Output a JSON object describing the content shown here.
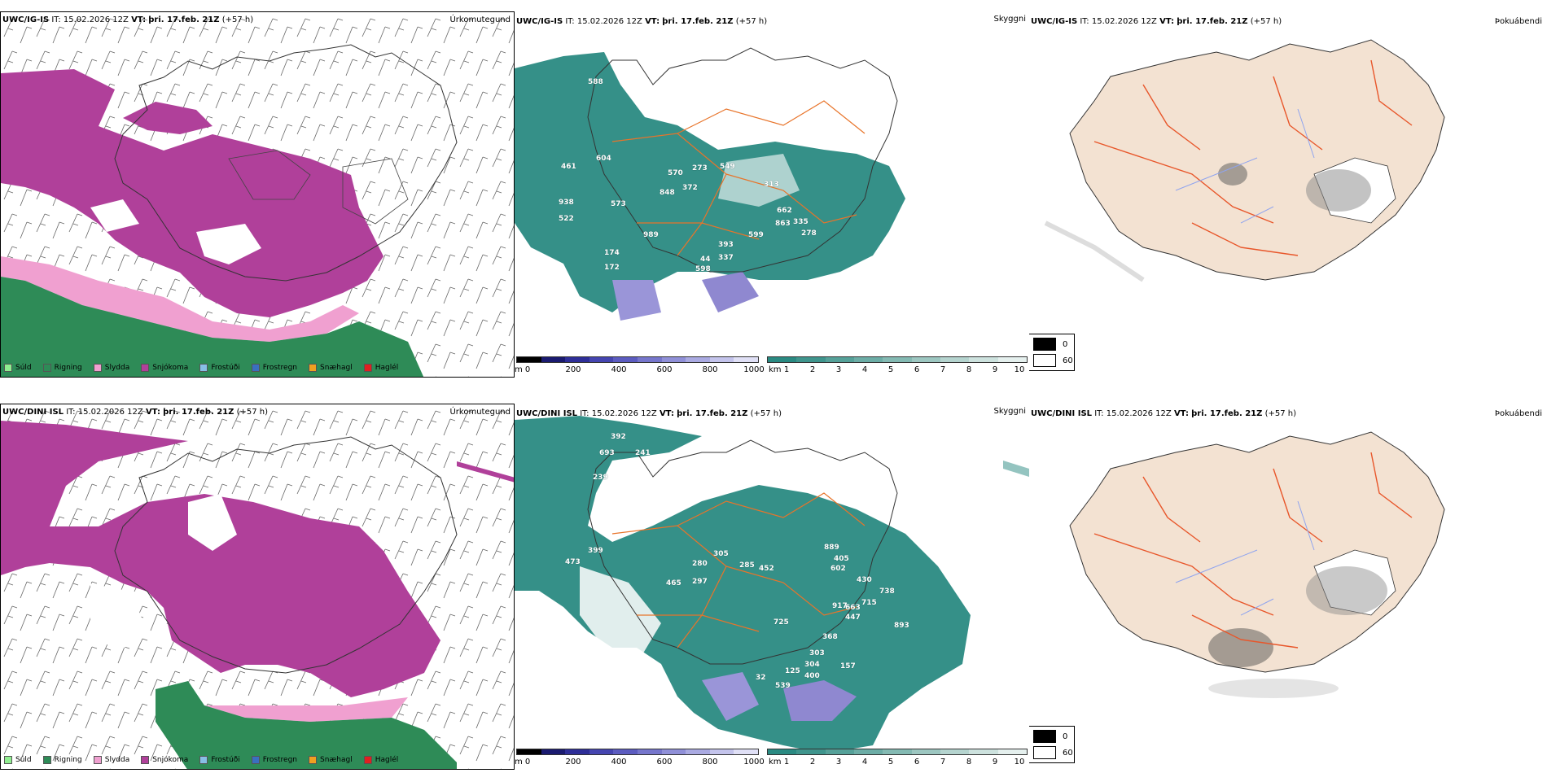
{
  "rows": [
    {
      "model": "UWC/IG-IS",
      "it": "IT: 15.02.2026 12Z",
      "vt_label": "VT:",
      "vt": "þri. 17.feb. 21Z",
      "lead": "(+57 h)",
      "cloud_numbers": [
        "588",
        "461",
        "604",
        "573",
        "273",
        "549",
        "570",
        "848",
        "372",
        "313",
        "938",
        "522",
        "662",
        "863",
        "335",
        "278",
        "989",
        "44",
        "337",
        "599",
        "598",
        "174",
        "172",
        "393"
      ]
    },
    {
      "model": "UWC/DINI ISL",
      "it": "IT: 15.02.2026 12Z",
      "vt_label": "VT:",
      "vt": "þri. 17.feb. 21Z",
      "lead": "(+57 h)",
      "cloud_numbers": [
        "392",
        "693",
        "241",
        "239",
        "399",
        "473",
        "305",
        "280",
        "285",
        "452",
        "889",
        "602",
        "465",
        "297",
        "430",
        "738",
        "715",
        "663",
        "447",
        "725",
        "917",
        "368",
        "893",
        "303",
        "304",
        "400",
        "32",
        "125",
        "539",
        "157",
        "405"
      ]
    }
  ],
  "titles": {
    "precip_type": "Úrkomutegund",
    "cloud": "Skyggni",
    "fog": "Þokuábendi"
  },
  "precip_legend": [
    {
      "label": "Súld",
      "color": "#90ee90"
    },
    {
      "label": "Rigning",
      "color": "#2e8b57"
    },
    {
      "label": "Slydda",
      "color": "#f0a0d0"
    },
    {
      "label": "Snjókoma",
      "color": "#b0409a"
    },
    {
      "label": "Frostúði",
      "color": "#87bfe6"
    },
    {
      "label": "Frostregn",
      "color": "#3a6fc0"
    },
    {
      "label": "Snæhagl",
      "color": "#f0a020"
    },
    {
      "label": "Haglél",
      "color": "#e02020"
    }
  ],
  "cloud_colorbar": {
    "unit_m": "m",
    "ticks_m": [
      "0",
      "200",
      "400",
      "600",
      "800",
      "1000"
    ],
    "unit_km": "km",
    "ticks_km": [
      "1",
      "2",
      "3",
      "4",
      "5",
      "6",
      "7",
      "8",
      "9",
      "10"
    ]
  },
  "fog_legend": [
    "0",
    "60"
  ],
  "colors": {
    "snow": "#b0409a",
    "rain": "#2e8b57",
    "sleet": "#f0a0d0",
    "cloud_teal": "#2a8a82",
    "land": "#f3e2d2",
    "roads": "#e8562a",
    "rivers": "#8fa4ef"
  }
}
